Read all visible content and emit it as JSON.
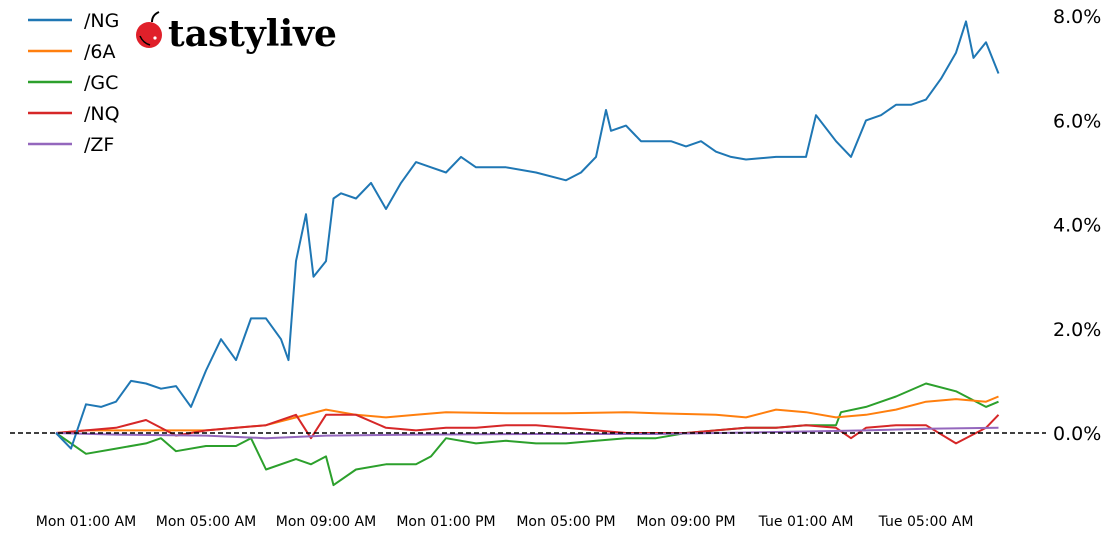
{
  "logo": {
    "text": "tastylive"
  },
  "chart_data": {
    "type": "line",
    "title": "",
    "xlabel": "",
    "ylabel": "",
    "ylim": [
      -1.2,
      8.0
    ],
    "y_ticks": [
      0,
      2,
      4,
      6,
      8
    ],
    "y_tick_labels": [
      "0.0%",
      "2.0%",
      "4.0%",
      "6.0%",
      "8.0%"
    ],
    "y_axis_side": "right",
    "x_tick_labels": [
      "Mon 01:00 AM",
      "Mon 05:00 AM",
      "Mon 09:00 AM",
      "Mon 01:00 PM",
      "Mon 05:00 PM",
      "Mon 09:00 PM",
      "Tue 01:00 AM",
      "Tue 05:00 AM"
    ],
    "x_ticks": [
      "Mon 01:00",
      "Mon 05:00",
      "Mon 09:00",
      "Mon 13:00",
      "Mon 17:00",
      "Mon 21:00",
      "Tue 01:00",
      "Tue 05:00"
    ],
    "reference_line": {
      "y": 0,
      "style": "dashed",
      "color": "#000000"
    },
    "grid": false,
    "legend_position": "top-left",
    "series": [
      {
        "name": "/NG",
        "color": "#1f77b4",
        "points": [
          [
            "Mon 00:00",
            0
          ],
          [
            "Mon 00:30",
            -0.3
          ],
          [
            "Mon 01:00",
            0.55
          ],
          [
            "Mon 01:30",
            0.5
          ],
          [
            "Mon 02:00",
            0.6
          ],
          [
            "Mon 02:30",
            1.0
          ],
          [
            "Mon 03:00",
            0.95
          ],
          [
            "Mon 03:30",
            0.85
          ],
          [
            "Mon 04:00",
            0.9
          ],
          [
            "Mon 04:30",
            0.5
          ],
          [
            "Mon 05:00",
            1.2
          ],
          [
            "Mon 05:30",
            1.8
          ],
          [
            "Mon 06:00",
            1.4
          ],
          [
            "Mon 06:30",
            2.2
          ],
          [
            "Mon 07:00",
            2.2
          ],
          [
            "Mon 07:30",
            1.8
          ],
          [
            "Mon 07:45",
            1.4
          ],
          [
            "Mon 08:00",
            3.3
          ],
          [
            "Mon 08:20",
            4.2
          ],
          [
            "Mon 08:35",
            3.0
          ],
          [
            "Mon 09:00",
            3.3
          ],
          [
            "Mon 09:15",
            4.5
          ],
          [
            "Mon 09:30",
            4.6
          ],
          [
            "Mon 10:00",
            4.5
          ],
          [
            "Mon 10:30",
            4.8
          ],
          [
            "Mon 11:00",
            4.3
          ],
          [
            "Mon 11:30",
            4.8
          ],
          [
            "Mon 12:00",
            5.2
          ],
          [
            "Mon 12:30",
            5.1
          ],
          [
            "Mon 13:00",
            5.0
          ],
          [
            "Mon 13:30",
            5.3
          ],
          [
            "Mon 14:00",
            5.1
          ],
          [
            "Mon 14:30",
            5.1
          ],
          [
            "Mon 15:00",
            5.1
          ],
          [
            "Mon 16:00",
            5.0
          ],
          [
            "Mon 17:00",
            4.85
          ],
          [
            "Mon 17:30",
            5.0
          ],
          [
            "Mon 18:00",
            5.3
          ],
          [
            "Mon 18:20",
            6.2
          ],
          [
            "Mon 18:30",
            5.8
          ],
          [
            "Mon 19:00",
            5.9
          ],
          [
            "Mon 19:30",
            5.6
          ],
          [
            "Mon 20:00",
            5.6
          ],
          [
            "Mon 20:30",
            5.6
          ],
          [
            "Mon 21:00",
            5.5
          ],
          [
            "Mon 21:30",
            5.6
          ],
          [
            "Mon 22:00",
            5.4
          ],
          [
            "Mon 22:30",
            5.3
          ],
          [
            "Mon 23:00",
            5.25
          ],
          [
            "Tue 00:00",
            5.3
          ],
          [
            "Tue 00:30",
            5.3
          ],
          [
            "Tue 01:00",
            5.3
          ],
          [
            "Tue 01:20",
            6.1
          ],
          [
            "Tue 02:00",
            5.6
          ],
          [
            "Tue 02:30",
            5.3
          ],
          [
            "Tue 03:00",
            6.0
          ],
          [
            "Tue 03:30",
            6.1
          ],
          [
            "Tue 04:00",
            6.3
          ],
          [
            "Tue 04:30",
            6.3
          ],
          [
            "Tue 05:00",
            6.4
          ],
          [
            "Tue 05:30",
            6.8
          ],
          [
            "Tue 06:00",
            7.3
          ],
          [
            "Tue 06:20",
            7.9
          ],
          [
            "Tue 06:35",
            7.2
          ],
          [
            "Tue 07:00",
            7.5
          ],
          [
            "Tue 07:25",
            6.9
          ]
        ]
      },
      {
        "name": "/6A",
        "color": "#ff7f0e",
        "points": [
          [
            "Mon 00:00",
            0
          ],
          [
            "Mon 01:00",
            0.05
          ],
          [
            "Mon 03:00",
            0.05
          ],
          [
            "Mon 05:00",
            0.05
          ],
          [
            "Mon 06:00",
            0.1
          ],
          [
            "Mon 07:00",
            0.15
          ],
          [
            "Mon 08:00",
            0.3
          ],
          [
            "Mon 09:00",
            0.45
          ],
          [
            "Mon 10:00",
            0.35
          ],
          [
            "Mon 11:00",
            0.3
          ],
          [
            "Mon 12:00",
            0.35
          ],
          [
            "Mon 13:00",
            0.4
          ],
          [
            "Mon 15:00",
            0.38
          ],
          [
            "Mon 17:00",
            0.38
          ],
          [
            "Mon 19:00",
            0.4
          ],
          [
            "Mon 20:00",
            0.38
          ],
          [
            "Mon 22:00",
            0.35
          ],
          [
            "Mon 23:00",
            0.3
          ],
          [
            "Tue 00:00",
            0.45
          ],
          [
            "Tue 01:00",
            0.4
          ],
          [
            "Tue 02:00",
            0.3
          ],
          [
            "Tue 03:00",
            0.35
          ],
          [
            "Tue 04:00",
            0.45
          ],
          [
            "Tue 05:00",
            0.6
          ],
          [
            "Tue 06:00",
            0.65
          ],
          [
            "Tue 07:00",
            0.6
          ],
          [
            "Tue 07:25",
            0.7
          ]
        ]
      },
      {
        "name": "/GC",
        "color": "#2ca02c",
        "points": [
          [
            "Mon 00:00",
            0
          ],
          [
            "Mon 01:00",
            -0.4
          ],
          [
            "Mon 02:00",
            -0.3
          ],
          [
            "Mon 03:00",
            -0.2
          ],
          [
            "Mon 03:30",
            -0.1
          ],
          [
            "Mon 04:00",
            -0.35
          ],
          [
            "Mon 05:00",
            -0.25
          ],
          [
            "Mon 06:00",
            -0.25
          ],
          [
            "Mon 06:30",
            -0.1
          ],
          [
            "Mon 07:00",
            -0.7
          ],
          [
            "Mon 08:00",
            -0.5
          ],
          [
            "Mon 08:30",
            -0.6
          ],
          [
            "Mon 09:00",
            -0.45
          ],
          [
            "Mon 09:15",
            -1.0
          ],
          [
            "Mon 10:00",
            -0.7
          ],
          [
            "Mon 11:00",
            -0.6
          ],
          [
            "Mon 12:00",
            -0.6
          ],
          [
            "Mon 12:30",
            -0.45
          ],
          [
            "Mon 13:00",
            -0.1
          ],
          [
            "Mon 14:00",
            -0.2
          ],
          [
            "Mon 15:00",
            -0.15
          ],
          [
            "Mon 16:00",
            -0.2
          ],
          [
            "Mon 17:00",
            -0.2
          ],
          [
            "Mon 18:00",
            -0.15
          ],
          [
            "Mon 19:00",
            -0.1
          ],
          [
            "Mon 20:00",
            -0.1
          ],
          [
            "Mon 21:00",
            0
          ],
          [
            "Mon 22:00",
            0.05
          ],
          [
            "Mon 23:00",
            0.1
          ],
          [
            "Tue 00:00",
            0.1
          ],
          [
            "Tue 01:00",
            0.15
          ],
          [
            "Tue 02:00",
            0.15
          ],
          [
            "Tue 02:10",
            0.4
          ],
          [
            "Tue 03:00",
            0.5
          ],
          [
            "Tue 04:00",
            0.7
          ],
          [
            "Tue 05:00",
            0.95
          ],
          [
            "Tue 06:00",
            0.8
          ],
          [
            "Tue 07:00",
            0.5
          ],
          [
            "Tue 07:25",
            0.6
          ]
        ]
      },
      {
        "name": "/NQ",
        "color": "#d62728",
        "points": [
          [
            "Mon 00:00",
            0
          ],
          [
            "Mon 01:00",
            0.05
          ],
          [
            "Mon 02:00",
            0.1
          ],
          [
            "Mon 03:00",
            0.25
          ],
          [
            "Mon 04:00",
            -0.05
          ],
          [
            "Mon 05:00",
            0.05
          ],
          [
            "Mon 06:00",
            0.1
          ],
          [
            "Mon 07:00",
            0.15
          ],
          [
            "Mon 08:00",
            0.35
          ],
          [
            "Mon 08:30",
            -0.1
          ],
          [
            "Mon 09:00",
            0.35
          ],
          [
            "Mon 10:00",
            0.35
          ],
          [
            "Mon 11:00",
            0.1
          ],
          [
            "Mon 12:00",
            0.05
          ],
          [
            "Mon 13:00",
            0.1
          ],
          [
            "Mon 14:00",
            0.1
          ],
          [
            "Mon 15:00",
            0.15
          ],
          [
            "Mon 16:00",
            0.15
          ],
          [
            "Mon 17:00",
            0.1
          ],
          [
            "Mon 18:00",
            0.05
          ],
          [
            "Mon 19:00",
            0
          ],
          [
            "Mon 21:00",
            0
          ],
          [
            "Mon 22:00",
            0.05
          ],
          [
            "Mon 23:00",
            0.1
          ],
          [
            "Tue 00:00",
            0.1
          ],
          [
            "Tue 01:00",
            0.15
          ],
          [
            "Tue 02:00",
            0.1
          ],
          [
            "Tue 02:30",
            -0.1
          ],
          [
            "Tue 03:00",
            0.1
          ],
          [
            "Tue 04:00",
            0.15
          ],
          [
            "Tue 05:00",
            0.15
          ],
          [
            "Tue 06:00",
            -0.2
          ],
          [
            "Tue 07:00",
            0.1
          ],
          [
            "Tue 07:25",
            0.35
          ]
        ]
      },
      {
        "name": "/ZF",
        "color": "#9467bd",
        "points": [
          [
            "Mon 00:00",
            0
          ],
          [
            "Mon 02:00",
            -0.03
          ],
          [
            "Mon 05:00",
            -0.05
          ],
          [
            "Mon 07:00",
            -0.1
          ],
          [
            "Mon 09:00",
            -0.05
          ],
          [
            "Mon 12:00",
            -0.03
          ],
          [
            "Mon 16:00",
            -0.02
          ],
          [
            "Mon 20:00",
            -0.02
          ],
          [
            "Tue 00:00",
            0.02
          ],
          [
            "Tue 03:00",
            0.05
          ],
          [
            "Tue 05:00",
            0.08
          ],
          [
            "Tue 07:25",
            0.1
          ]
        ]
      }
    ]
  }
}
